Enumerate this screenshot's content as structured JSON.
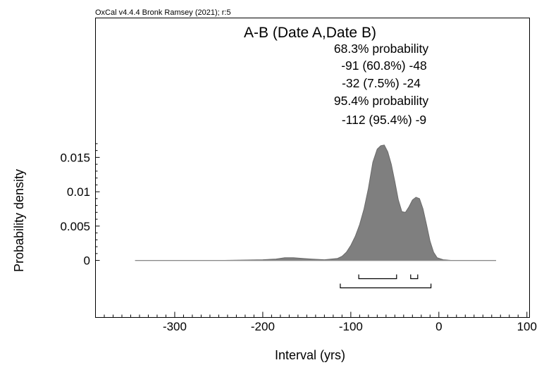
{
  "version_text": "OxCal v4.4.4 Bronk Ramsey (2021); r:5",
  "chart_data": {
    "type": "area",
    "title": "A-B (Date A,Date B)",
    "xlabel": "Interval (yrs)",
    "ylabel": "Probability density",
    "xlim": [
      -390,
      103
    ],
    "ylim": [
      -0.0083,
      0.0353
    ],
    "x_ticks": [
      -300,
      -200,
      -100,
      0,
      100
    ],
    "y_ticks": [
      0,
      0.005,
      0.01,
      0.015
    ],
    "y_tick_labels": [
      "0",
      "0.005",
      "0.01",
      "0.015"
    ],
    "fill_color": "#7f7f7f",
    "density": {
      "x": [
        -345,
        -250,
        -200,
        -185,
        -175,
        -165,
        -155,
        -145,
        -130,
        -115,
        -110,
        -105,
        -100,
        -95,
        -90,
        -85,
        -80,
        -75,
        -70,
        -66,
        -62,
        -58,
        -54,
        -50,
        -46,
        -42,
        -38,
        -34,
        -30,
        -26,
        -22,
        -18,
        -14,
        -10,
        -6,
        -2,
        5,
        15,
        30,
        50,
        65
      ],
      "y": [
        0,
        0,
        0.0001,
        0.0002,
        0.0004,
        0.0004,
        0.0003,
        0.0002,
        0.0001,
        0.0003,
        0.0006,
        0.0012,
        0.0022,
        0.0035,
        0.0052,
        0.0075,
        0.0105,
        0.0143,
        0.0162,
        0.0167,
        0.0168,
        0.0158,
        0.014,
        0.0115,
        0.0088,
        0.0071,
        0.007,
        0.0078,
        0.0088,
        0.0092,
        0.009,
        0.0075,
        0.0052,
        0.0028,
        0.0012,
        0.0004,
        0.0001,
        0,
        0,
        0,
        0
      ]
    },
    "probability_ranges": {
      "p68": {
        "label": "68.3% probability",
        "ranges": [
          {
            "from": -91,
            "to": -48,
            "text": "-91 (60.8%) -48"
          },
          {
            "from": -32,
            "to": -24,
            "text": "-32 (7.5%) -24"
          }
        ]
      },
      "p95": {
        "label": "95.4% probability",
        "ranges": [
          {
            "from": -112,
            "to": -9,
            "text": "-112 (95.4%) -9"
          }
        ]
      }
    }
  }
}
